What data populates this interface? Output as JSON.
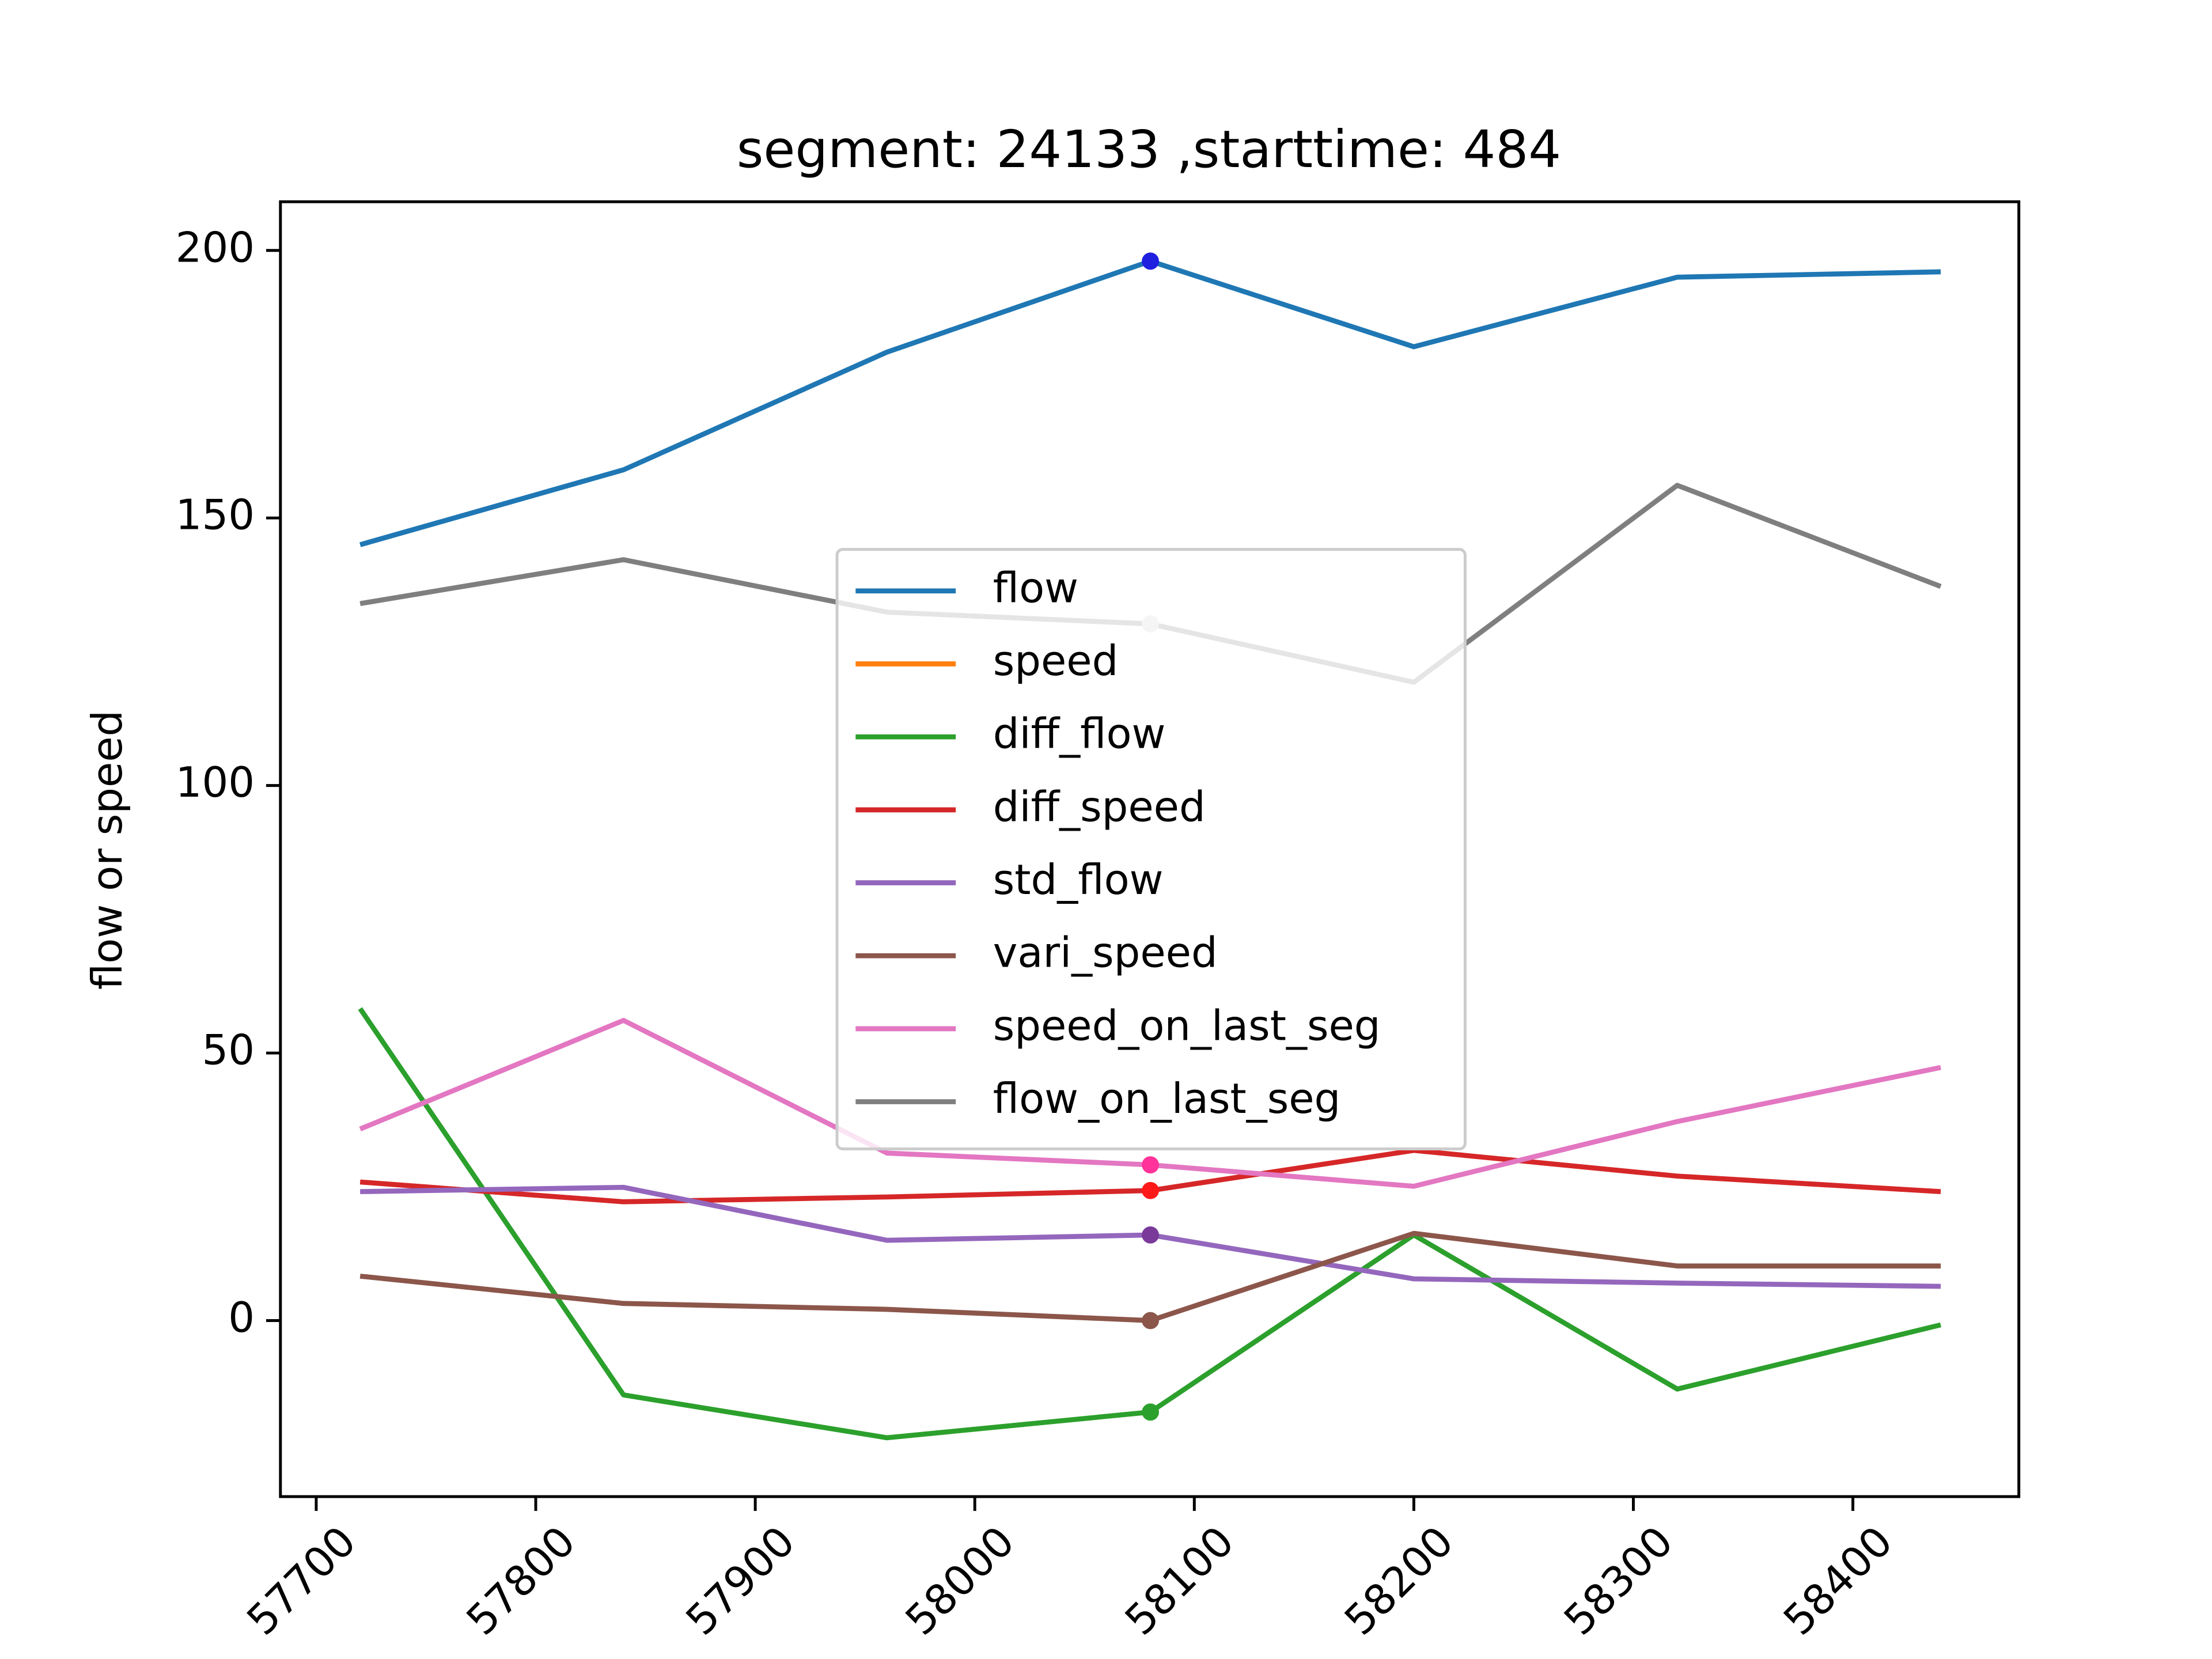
{
  "chart_data": {
    "type": "line",
    "title": "segment: 24133 ,starttime: 484",
    "ylabel": "flow or speed",
    "x": [
      57720,
      57840,
      57960,
      58080,
      58200,
      58320,
      58440
    ],
    "xlim": [
      57683.7,
      58475.6
    ],
    "xticks": [
      57700,
      57800,
      57900,
      58000,
      58100,
      58200,
      58300,
      58400
    ],
    "ylim": [
      -32.9,
      209.1
    ],
    "yticks": [
      0,
      50,
      100,
      150,
      200
    ],
    "legend": "center",
    "highlight_index": 3,
    "series": [
      {
        "name": "flow",
        "color": "#1f77b4",
        "marker_color": "#1f1fe0",
        "values": [
          145,
          159,
          181,
          198,
          182,
          195,
          196
        ]
      },
      {
        "name": "speed",
        "color": "#ff7f0e",
        "values": [
          null,
          null,
          null,
          null,
          null,
          null,
          null
        ]
      },
      {
        "name": "diff_flow",
        "color": "#2ca02c",
        "values": [
          58.3,
          -13.9,
          -21.9,
          -17.1,
          16,
          -12.8,
          -0.8
        ]
      },
      {
        "name": "diff_speed",
        "color": "#d62728",
        "marker_color": "#ff1a1a",
        "values": [
          25.9,
          22.2,
          23.1,
          24.3,
          31.8,
          27,
          24.1
        ]
      },
      {
        "name": "std_flow",
        "color": "#9467bd",
        "marker_color": "#7a3a9a",
        "values": [
          24.1,
          24.9,
          15,
          16,
          7.8,
          7,
          6.4
        ]
      },
      {
        "name": "vari_speed",
        "color": "#8c564b",
        "values": [
          8.3,
          3.2,
          2.1,
          0,
          16.3,
          10.2,
          10.2
        ]
      },
      {
        "name": "speed_on_last_seg",
        "color": "#e377c2",
        "marker_color": "#ff3399",
        "values": [
          35.8,
          56.1,
          31.3,
          29.1,
          25.1,
          37.2,
          47.3
        ]
      },
      {
        "name": "flow_on_last_seg",
        "color": "#7f7f7f",
        "marker_color": "#cccccc",
        "values": [
          134,
          142.2,
          132.4,
          130.2,
          119.3,
          156.1,
          137.2
        ]
      }
    ]
  }
}
